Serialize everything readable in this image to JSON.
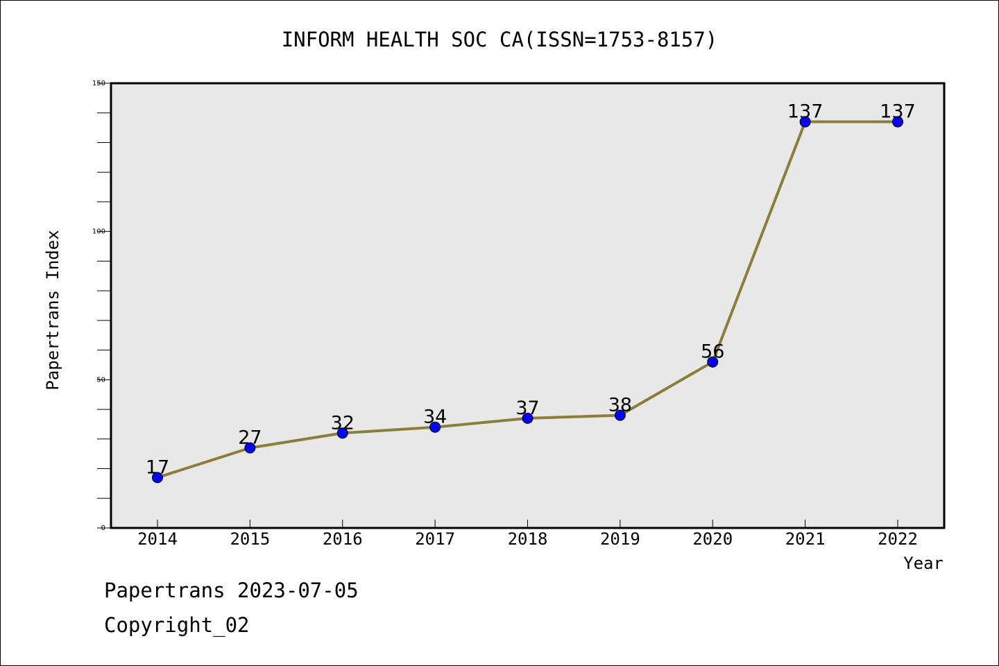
{
  "chart_data": {
    "type": "line",
    "title": "INFORM HEALTH SOC CA(ISSN=1753-8157)",
    "xlabel": "Year",
    "ylabel": "Papertrans Index",
    "categories": [
      "2014",
      "2015",
      "2016",
      "2017",
      "2018",
      "2019",
      "2020",
      "2021",
      "2022"
    ],
    "series": [
      {
        "values": [
          17,
          27,
          32,
          34,
          37,
          38,
          56,
          137,
          137
        ]
      }
    ],
    "data_labels": [
      "17",
      "27",
      "32",
      "34",
      "37",
      "38",
      "56",
      "137",
      "137"
    ],
    "ylim": [
      0,
      150
    ],
    "y_ticks": [
      "0",
      "50",
      "100",
      "150"
    ],
    "grid": false,
    "colors": {
      "line": "#8b7d3a",
      "marker": "#0000ff",
      "plot_background": "#e8e8e8"
    }
  },
  "footer": {
    "date_text": "Papertrans 2023-07-05",
    "copyright_text": "Copyright_02"
  }
}
